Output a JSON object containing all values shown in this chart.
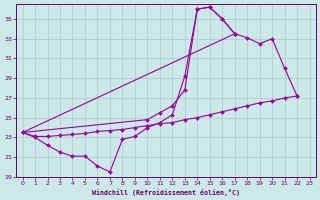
{
  "xlabel": "Windchill (Refroidissement éolien,°C)",
  "bg_color": "#cce8e8",
  "grid_color": "#aacccc",
  "line_color": "#990099",
  "xlim": [
    -0.5,
    23.5
  ],
  "ylim": [
    19,
    36.5
  ],
  "xticks": [
    0,
    1,
    2,
    3,
    4,
    5,
    6,
    7,
    8,
    9,
    10,
    11,
    12,
    13,
    14,
    15,
    16,
    17,
    18,
    19,
    20,
    21,
    22,
    23
  ],
  "yticks": [
    19,
    21,
    23,
    25,
    27,
    29,
    31,
    33,
    35
  ],
  "curve1_x": [
    0,
    1,
    2,
    3,
    4,
    5,
    6,
    7,
    8,
    9,
    10,
    11,
    12,
    13,
    14,
    15,
    16,
    17
  ],
  "curve1_y": [
    23.5,
    23.0,
    22.2,
    21.5,
    21.1,
    21.1,
    20.1,
    19.5,
    22.8,
    23.1,
    24.0,
    24.5,
    25.3,
    29.2,
    36.0,
    36.2,
    35.0,
    33.5
  ],
  "curve2_x": [
    0,
    10,
    11,
    12,
    13,
    14,
    15,
    16,
    17
  ],
  "curve2_y": [
    23.5,
    24.8,
    25.5,
    26.2,
    27.8,
    36.0,
    36.2,
    35.0,
    33.5
  ],
  "curve3_x": [
    0,
    17,
    18,
    19,
    20,
    21,
    22
  ],
  "curve3_y": [
    23.5,
    33.5,
    33.1,
    32.5,
    33.0,
    30.0,
    27.2
  ],
  "curve4_x": [
    0,
    1,
    2,
    3,
    4,
    5,
    6,
    7,
    8,
    9,
    10,
    11,
    12,
    13,
    14,
    15,
    16,
    17,
    18,
    19,
    20,
    21,
    22
  ],
  "curve4_y": [
    23.5,
    23.1,
    23.1,
    23.2,
    23.3,
    23.4,
    23.6,
    23.7,
    23.8,
    24.0,
    24.2,
    24.4,
    24.5,
    24.8,
    25.0,
    25.3,
    25.6,
    25.9,
    26.2,
    26.5,
    26.7,
    27.0,
    27.2
  ]
}
